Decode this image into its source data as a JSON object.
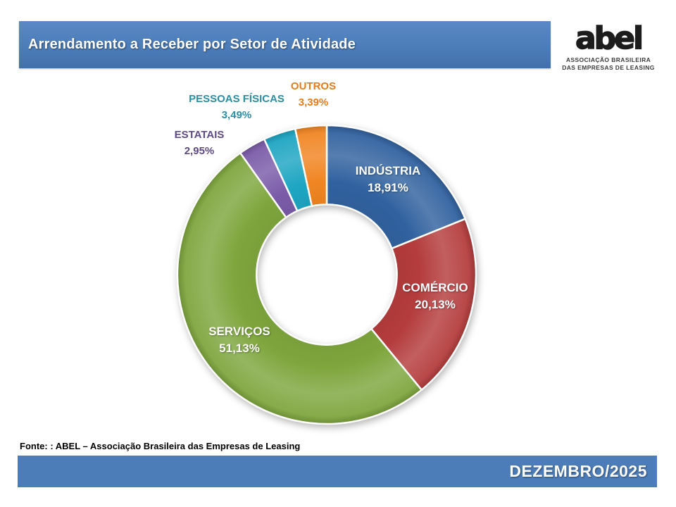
{
  "header": {
    "title": "Arrendamento a Receber por Setor de Atividade"
  },
  "logo": {
    "wordmark": "abel",
    "subtitle_line1": "ASSOCIAÇÃO BRASILEIRA",
    "subtitle_line2": "DAS EMPRESAS DE LEASING"
  },
  "footer": {
    "source": "Fonte: : ABEL – Associação Brasileira das Empresas de Leasing",
    "period": "DEZEMBRO/2025"
  },
  "colors": {
    "accent_blue": "#4D7DB9",
    "title_text": "#FFFFFF"
  },
  "chart_data": {
    "type": "pie",
    "subtype": "donut",
    "title": "Arrendamento a Receber por Setor de Atividade",
    "categories": [
      "INDÚSTRIA",
      "COMÉRCIO",
      "SERVIÇOS",
      "ESTATAIS",
      "PESSOAS FÍSICAS",
      "OUTROS"
    ],
    "values": [
      18.91,
      20.13,
      51.13,
      2.95,
      3.49,
      3.39
    ],
    "value_labels": [
      "18,91%",
      "20,13%",
      "51,13%",
      "2,95%",
      "3,49%",
      "3,39%"
    ],
    "slice_colors": [
      "#31629F",
      "#B43C3C",
      "#7EA63D",
      "#7A5BA8",
      "#1DA5C2",
      "#F08522"
    ],
    "label_colors": [
      "#FFFFFF",
      "#FFFFFF",
      "#FFFFFF",
      "#5E4A82",
      "#2B8EA1",
      "#E27C1C"
    ],
    "label_placement": [
      "inside",
      "inside",
      "inside",
      "outside",
      "outside",
      "outside"
    ],
    "start_angle_deg": 0,
    "direction": "clockwise",
    "inner_radius_ratio": 0.47,
    "legend_position": "none",
    "total": 100.0
  }
}
